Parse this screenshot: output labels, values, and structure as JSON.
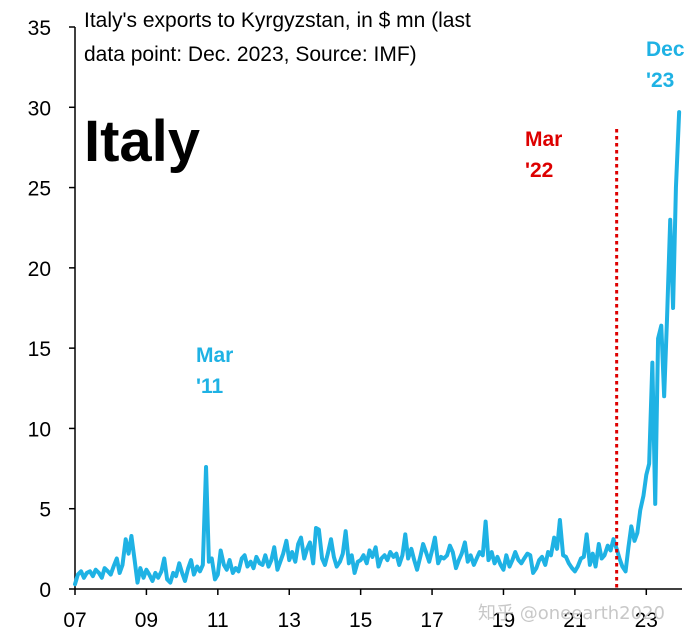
{
  "chart_data": {
    "type": "line",
    "title_lines": [
      "Italy's exports to Kyrgyzstan, in $ mn (last",
      "data point: Dec. 2023, Source: IMF)"
    ],
    "big_label": "Italy",
    "ylim": [
      0,
      35
    ],
    "yticks": [
      0,
      5,
      10,
      15,
      20,
      25,
      30,
      35
    ],
    "xlim": [
      2007.0,
      2024.0
    ],
    "xticks": [
      {
        "pos": 2007.0,
        "label": "07"
      },
      {
        "pos": 2009.0,
        "label": "09"
      },
      {
        "pos": 2011.0,
        "label": "11"
      },
      {
        "pos": 2013.0,
        "label": "13"
      },
      {
        "pos": 2015.0,
        "label": "15"
      },
      {
        "pos": 2017.0,
        "label": "17"
      },
      {
        "pos": 2019.0,
        "label": "19"
      },
      {
        "pos": 2021.0,
        "label": "21"
      },
      {
        "pos": 2023.0,
        "label": "23"
      }
    ],
    "grid": false,
    "line_color": "#1fb2e4",
    "vline": {
      "x": 2022.17,
      "color": "#dd0000",
      "label_lines": [
        "Mar",
        "'22"
      ]
    },
    "annotations": [
      {
        "lines": [
          "Mar",
          "'11"
        ],
        "color": "#1fb2e4"
      },
      {
        "lines": [
          "Dec",
          "'23"
        ],
        "color": "#1fb2e4"
      }
    ],
    "watermark": "知乎 @oneearth2020",
    "series": [
      {
        "x": [
          2007.0,
          2007.08,
          2007.17,
          2007.25,
          2007.33,
          2007.42,
          2007.5,
          2007.58,
          2007.67,
          2007.75,
          2007.83,
          2007.92,
          2008.0,
          2008.08,
          2008.17,
          2008.25,
          2008.33,
          2008.42,
          2008.5,
          2008.58,
          2008.67,
          2008.75,
          2008.83,
          2008.92,
          2009.0,
          2009.08,
          2009.17,
          2009.25,
          2009.33,
          2009.42,
          2009.5,
          2009.58,
          2009.67,
          2009.75,
          2009.83,
          2009.92,
          2010.0,
          2010.08,
          2010.17,
          2010.25,
          2010.33,
          2010.42,
          2010.5,
          2010.58,
          2010.67,
          2010.75,
          2010.83,
          2010.92,
          2011.0,
          2011.08,
          2011.17,
          2011.25,
          2011.33,
          2011.42,
          2011.5,
          2011.58,
          2011.67,
          2011.75,
          2011.83,
          2011.92,
          2012.0,
          2012.08,
          2012.17,
          2012.25,
          2012.33,
          2012.42,
          2012.5,
          2012.58,
          2012.67,
          2012.75,
          2012.83,
          2012.92,
          2013.0,
          2013.08,
          2013.17,
          2013.25,
          2013.33,
          2013.42,
          2013.5,
          2013.58,
          2013.67,
          2013.75,
          2013.83,
          2013.92,
          2014.0,
          2014.08,
          2014.17,
          2014.25,
          2014.33,
          2014.42,
          2014.5,
          2014.58,
          2014.67,
          2014.75,
          2014.83,
          2014.92,
          2015.0,
          2015.08,
          2015.17,
          2015.25,
          2015.33,
          2015.42,
          2015.5,
          2015.58,
          2015.67,
          2015.75,
          2015.83,
          2015.92,
          2016.0,
          2016.08,
          2016.17,
          2016.25,
          2016.33,
          2016.42,
          2016.5,
          2016.58,
          2016.67,
          2016.75,
          2016.83,
          2016.92,
          2017.0,
          2017.08,
          2017.17,
          2017.25,
          2017.33,
          2017.42,
          2017.5,
          2017.58,
          2017.67,
          2017.75,
          2017.83,
          2017.92,
          2018.0,
          2018.08,
          2018.17,
          2018.25,
          2018.33,
          2018.42,
          2018.5,
          2018.58,
          2018.67,
          2018.75,
          2018.83,
          2018.92,
          2019.0,
          2019.08,
          2019.17,
          2019.25,
          2019.33,
          2019.42,
          2019.5,
          2019.58,
          2019.67,
          2019.75,
          2019.83,
          2019.92,
          2020.0,
          2020.08,
          2020.17,
          2020.25,
          2020.33,
          2020.42,
          2020.5,
          2020.58,
          2020.67,
          2020.75,
          2020.83,
          2020.92,
          2021.0,
          2021.08,
          2021.17,
          2021.25,
          2021.33,
          2021.42,
          2021.5,
          2021.58,
          2021.67,
          2021.75,
          2021.83,
          2021.92,
          2022.0,
          2022.08,
          2022.17,
          2022.25,
          2022.33,
          2022.42,
          2022.5,
          2022.58,
          2022.67,
          2022.75,
          2022.83,
          2022.92,
          2023.0,
          2023.08,
          2023.17,
          2023.25,
          2023.33,
          2023.42,
          2023.5,
          2023.58,
          2023.67,
          2023.75,
          2023.83,
          2023.92
        ],
        "y": [
          0.3,
          0.9,
          1.1,
          0.7,
          1.0,
          1.1,
          0.8,
          1.2,
          1.0,
          0.7,
          1.3,
          1.1,
          0.9,
          1.4,
          1.9,
          1.0,
          1.5,
          3.1,
          2.2,
          3.3,
          1.8,
          0.4,
          1.3,
          0.7,
          1.2,
          0.9,
          0.5,
          1.0,
          0.7,
          1.1,
          1.9,
          0.6,
          0.4,
          1.0,
          0.8,
          1.6,
          1.0,
          0.5,
          1.3,
          1.8,
          0.9,
          1.4,
          1.1,
          1.5,
          7.6,
          1.7,
          1.9,
          0.6,
          0.9,
          2.4,
          1.5,
          1.2,
          1.8,
          1.0,
          1.3,
          1.1,
          1.9,
          2.1,
          1.4,
          1.7,
          1.3,
          2.0,
          1.6,
          1.5,
          2.1,
          1.4,
          1.8,
          2.6,
          1.2,
          1.7,
          2.2,
          3.0,
          1.8,
          2.3,
          1.7,
          2.8,
          3.2,
          1.9,
          2.5,
          2.9,
          1.6,
          3.8,
          3.7,
          1.9,
          1.5,
          2.2,
          3.1,
          2.0,
          1.4,
          1.7,
          2.2,
          3.6,
          1.6,
          2.1,
          1.0,
          1.7,
          1.8,
          2.1,
          1.6,
          2.4,
          2.0,
          2.6,
          1.4,
          1.9,
          2.1,
          1.8,
          2.3,
          2.0,
          2.2,
          1.5,
          2.1,
          3.4,
          1.9,
          2.5,
          1.8,
          1.2,
          2.0,
          2.8,
          2.3,
          1.7,
          2.4,
          3.2,
          1.6,
          2.0,
          1.9,
          2.1,
          2.7,
          2.3,
          1.3,
          1.8,
          2.2,
          2.9,
          1.7,
          2.1,
          1.5,
          1.9,
          2.3,
          2.1,
          4.2,
          1.8,
          2.3,
          1.6,
          2.0,
          1.5,
          1.2,
          2.1,
          1.4,
          1.8,
          2.3,
          1.8,
          1.6,
          1.9,
          2.2,
          2.1,
          1.0,
          1.3,
          1.8,
          2.0,
          1.5,
          2.3,
          2.1,
          3.2,
          2.5,
          4.3,
          2.1,
          2.0,
          1.6,
          1.3,
          1.1,
          1.4,
          1.9,
          2.0,
          3.4,
          1.5,
          2.2,
          1.4,
          2.8,
          1.9,
          2.1,
          2.7,
          2.4,
          3.1,
          2.5,
          1.9,
          1.4,
          1.1,
          2.6,
          3.9,
          3.0,
          3.5,
          4.9,
          5.8,
          7.1,
          7.8,
          14.1,
          5.3,
          15.6,
          16.4,
          12.0,
          16.8,
          23.0,
          17.5,
          25.0,
          29.7
        ]
      }
    ]
  }
}
